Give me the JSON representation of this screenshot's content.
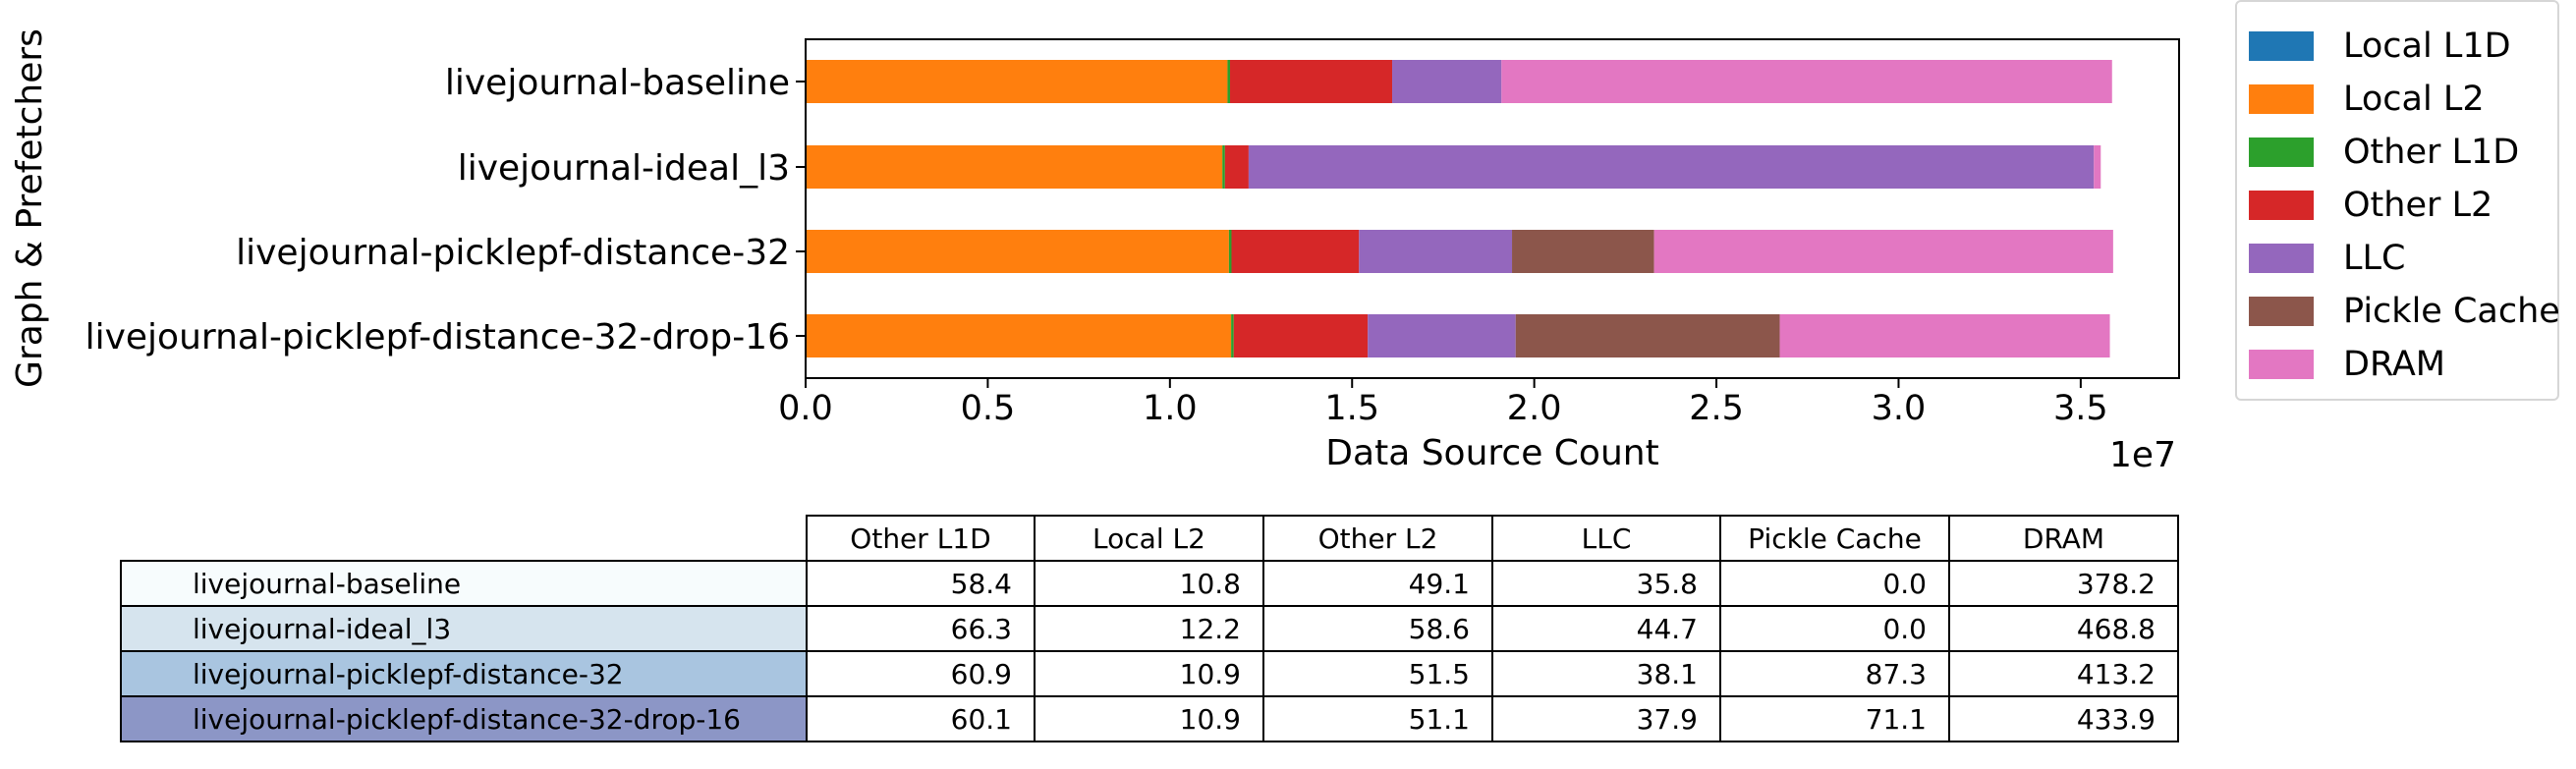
{
  "chart_data": {
    "type": "bar",
    "orientation": "horizontal",
    "stacked": true,
    "categories": [
      "livejournal-baseline",
      "livejournal-ideal_l3",
      "livejournal-picklepf-distance-32",
      "livejournal-picklepf-distance-32-drop-16"
    ],
    "series": [
      {
        "name": "Local L1D",
        "color": "#1f77b4",
        "values": [
          0.0,
          0.0,
          0.0,
          0.0
        ]
      },
      {
        "name": "Local L2",
        "color": "#ff7f0e",
        "values": [
          11580000,
          11440000,
          11620000,
          11680000
        ]
      },
      {
        "name": "Other L1D",
        "color": "#2ca02c",
        "values": [
          70000,
          70000,
          70000,
          70000
        ]
      },
      {
        "name": "Other L2",
        "color": "#d62728",
        "values": [
          4450000,
          650000,
          3500000,
          3680000
        ]
      },
      {
        "name": "LLC",
        "color": "#9467bd",
        "values": [
          3000000,
          23200000,
          4200000,
          4060000
        ]
      },
      {
        "name": "Pickle Cache",
        "color": "#8c564b",
        "values": [
          0.0,
          0.0,
          3900000,
          7250000
        ]
      },
      {
        "name": "DRAM",
        "color": "#e377c2",
        "values": [
          16760000,
          190000,
          12600000,
          9060000
        ]
      }
    ],
    "xlabel": "Data Source Count",
    "ylabel": "Graph & Prefetchers",
    "xlim": [
      0,
      37700000
    ],
    "xticks": [
      0,
      5000000,
      10000000,
      15000000,
      20000000,
      25000000,
      30000000,
      35000000
    ],
    "xtick_labels": [
      "0.0",
      "0.5",
      "1.0",
      "1.5",
      "2.0",
      "2.5",
      "3.0",
      "3.5"
    ],
    "offset_text": "1e7",
    "legend_position": "right"
  },
  "table": {
    "columns": [
      "Other L1D",
      "Local L2",
      "Other L2",
      "LLC",
      "Pickle Cache",
      "DRAM"
    ],
    "rows": [
      {
        "label": "livejournal-baseline",
        "color": "#f7fcfd",
        "values": [
          "58.4",
          "10.8",
          "49.1",
          "35.8",
          "0.0",
          "378.2"
        ]
      },
      {
        "label": "livejournal-ideal_l3",
        "color": "#d6e4ee",
        "values": [
          "66.3",
          "12.2",
          "58.6",
          "44.7",
          "0.0",
          "468.8"
        ]
      },
      {
        "label": "livejournal-picklepf-distance-32",
        "color": "#a9c5e0",
        "values": [
          "60.9",
          "10.9",
          "51.5",
          "38.1",
          "87.3",
          "413.2"
        ]
      },
      {
        "label": "livejournal-picklepf-distance-32-drop-16",
        "color": "#8c96c6",
        "values": [
          "60.1",
          "10.9",
          "51.1",
          "37.9",
          "71.1",
          "433.9"
        ]
      }
    ]
  }
}
